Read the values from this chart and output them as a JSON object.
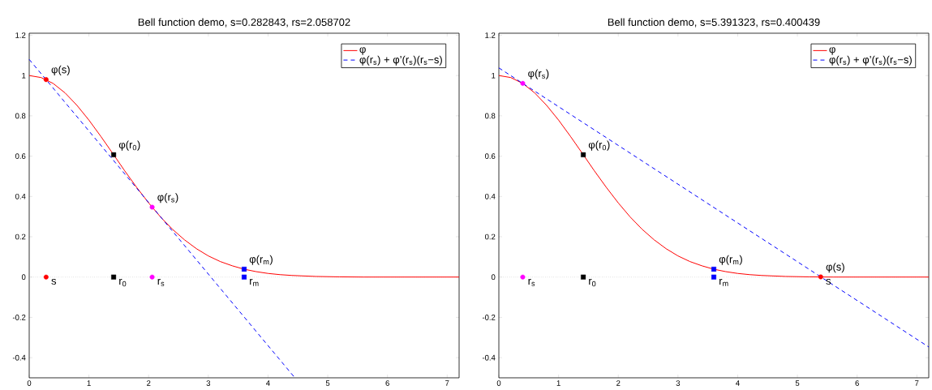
{
  "chart_data": [
    {
      "type": "line",
      "title": "Bell function demo, s=0.282843, rs=2.058702",
      "xlim": [
        0,
        7.2
      ],
      "ylim": [
        -0.5,
        1.21
      ],
      "xticks": [
        0,
        1,
        2,
        3,
        4,
        5,
        6,
        7
      ],
      "yticks": [
        -0.4,
        -0.2,
        0,
        0.2,
        0.4,
        0.6,
        0.8,
        1,
        1.2
      ],
      "legend": "top right",
      "grid": false,
      "ref_lines": [
        {
          "axis": "y",
          "value": 0,
          "color": "#b0b0b0",
          "line_style": "dotted"
        }
      ],
      "series": [
        {
          "name": "φ",
          "color": "#ff0000",
          "x": [
            0,
            0.2,
            0.4,
            0.6,
            0.8,
            1.0,
            1.2,
            1.4,
            1.6,
            1.8,
            2.0,
            2.2,
            2.4,
            2.6,
            2.8,
            3.0,
            3.2,
            3.4,
            3.6,
            3.8,
            4.0,
            4.2,
            4.4,
            4.8,
            5.2,
            5.6,
            6.4,
            7.2
          ],
          "values": [
            1,
            0.99,
            0.961,
            0.914,
            0.852,
            0.779,
            0.698,
            0.613,
            0.527,
            0.445,
            0.368,
            0.298,
            0.237,
            0.185,
            0.141,
            0.105,
            0.077,
            0.056,
            0.039,
            0.027,
            0.018,
            0.012,
            0.008,
            0.003,
            0.001,
            0,
            0,
            0
          ]
        },
        {
          "name": "φ(r$_{s}$) + φ’(r$_{s}$)(r$_{s}$−s)",
          "color": "#0000ff",
          "line_style": "dashed",
          "x": [
            0,
            4.45
          ],
          "values": [
            1.08,
            -0.5
          ]
        },
        {
          "type": "scatter",
          "marker": "circle",
          "color": "#ff0000",
          "x": [
            0.283,
            0.283
          ],
          "values": [
            0.98,
            0
          ]
        },
        {
          "type": "scatter",
          "marker": "square",
          "color": "#000000",
          "x": [
            1.414,
            1.414
          ],
          "values": [
            0.607,
            0
          ]
        },
        {
          "type": "scatter",
          "marker": "circle",
          "color": "#ff00ff",
          "x": [
            2.059,
            2.059
          ],
          "values": [
            0.347,
            0
          ]
        },
        {
          "type": "scatter",
          "marker": "square",
          "color": "#0000ff",
          "x": [
            3.6,
            3.6
          ],
          "values": [
            0.039,
            0
          ]
        }
      ],
      "annotations": [
        {
          "text": "φ(s)",
          "x": 0.283,
          "y": 0.98
        },
        {
          "text": "φ(r$_{0}$)",
          "x": 1.414,
          "y": 0.607
        },
        {
          "text": "φ(r$_{s}$)",
          "x": 2.059,
          "y": 0.347
        },
        {
          "text": "φ(r$_{m}$)",
          "x": 3.6,
          "y": 0.039
        },
        {
          "text": "s",
          "x": 0.283,
          "y": 0
        },
        {
          "text": "r$_{0}$",
          "x": 1.414,
          "y": 0
        },
        {
          "text": "r$_{s}$",
          "x": 2.059,
          "y": 0
        },
        {
          "text": "r$_{m}$",
          "x": 3.6,
          "y": 0
        }
      ]
    },
    {
      "type": "line",
      "title": "Bell function demo, s=5.391323, rs=0.400439",
      "xlim": [
        0,
        7.2
      ],
      "ylim": [
        -0.5,
        1.21
      ],
      "xticks": [
        0,
        1,
        2,
        3,
        4,
        5,
        6,
        7
      ],
      "yticks": [
        -0.4,
        -0.2,
        0,
        0.2,
        0.4,
        0.6,
        0.8,
        1,
        1.2
      ],
      "legend": "top right",
      "grid": false,
      "ref_lines": [
        {
          "axis": "y",
          "value": 0,
          "color": "#b0b0b0",
          "line_style": "dotted"
        }
      ],
      "series": [
        {
          "name": "φ",
          "color": "#ff0000",
          "x": [
            0,
            0.2,
            0.4,
            0.6,
            0.8,
            1.0,
            1.2,
            1.4,
            1.6,
            1.8,
            2.0,
            2.2,
            2.4,
            2.6,
            2.8,
            3.0,
            3.2,
            3.4,
            3.6,
            3.8,
            4.0,
            4.2,
            4.4,
            4.8,
            5.2,
            5.6,
            6.4,
            7.2
          ],
          "values": [
            1,
            0.99,
            0.961,
            0.914,
            0.852,
            0.779,
            0.698,
            0.613,
            0.527,
            0.445,
            0.368,
            0.298,
            0.237,
            0.185,
            0.141,
            0.105,
            0.077,
            0.056,
            0.039,
            0.027,
            0.018,
            0.012,
            0.008,
            0.003,
            0.001,
            0,
            0,
            0
          ]
        },
        {
          "name": "φ(r$_{s}$) + φ’(r$_{s}$)(r$_{s}$−s)",
          "color": "#0000ff",
          "line_style": "dashed",
          "x": [
            0,
            7.2
          ],
          "values": [
            1.038,
            -0.347
          ]
        },
        {
          "type": "scatter",
          "marker": "circle",
          "color": "#ff00ff",
          "x": [
            0.4,
            0.4
          ],
          "values": [
            0.961,
            0
          ]
        },
        {
          "type": "scatter",
          "marker": "square",
          "color": "#000000",
          "x": [
            1.414,
            1.414
          ],
          "values": [
            0.607,
            0
          ]
        },
        {
          "type": "scatter",
          "marker": "square",
          "color": "#0000ff",
          "x": [
            3.6,
            3.6
          ],
          "values": [
            0.039,
            0
          ]
        },
        {
          "type": "scatter",
          "marker": "circle",
          "color": "#ff0000",
          "x": [
            5.391
          ],
          "values": [
            0.001
          ]
        }
      ],
      "annotations": [
        {
          "text": "φ(r$_{s}$)",
          "x": 0.4,
          "y": 0.961
        },
        {
          "text": "φ(r$_{0}$)",
          "x": 1.414,
          "y": 0.607
        },
        {
          "text": "φ(r$_{m}$)",
          "x": 3.6,
          "y": 0.039
        },
        {
          "text": "φ(s)",
          "x": 5.391,
          "y": 0.001
        },
        {
          "text": "r$_{s}$",
          "x": 0.4,
          "y": 0
        },
        {
          "text": "r$_{0}$",
          "x": 1.414,
          "y": 0
        },
        {
          "text": "r$_{m}$",
          "x": 3.6,
          "y": 0
        },
        {
          "text": "s",
          "x": 5.391,
          "y": 0
        }
      ]
    }
  ]
}
